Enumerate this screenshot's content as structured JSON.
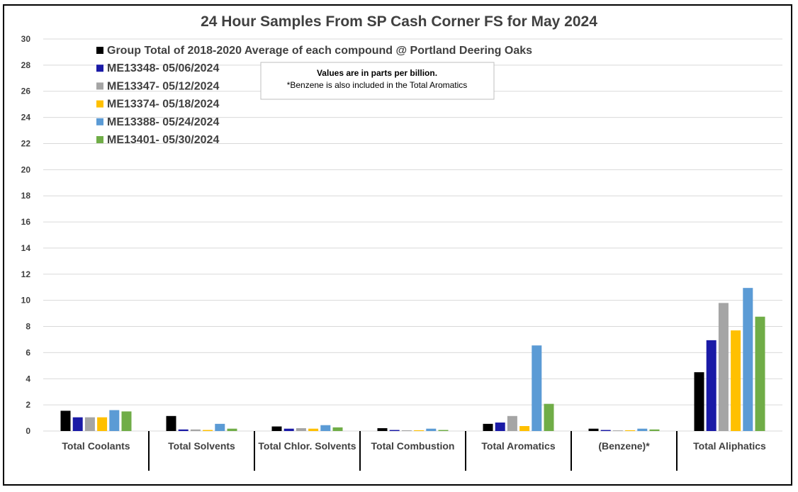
{
  "chart_data": {
    "type": "bar",
    "title": "24 Hour Samples From SP Cash Corner FS for May 2024",
    "xlabel": "",
    "ylabel": "",
    "ylim": [
      0,
      30
    ],
    "yticks": [
      0,
      2,
      4,
      6,
      8,
      10,
      12,
      14,
      16,
      18,
      20,
      22,
      24,
      26,
      28,
      30
    ],
    "grid": true,
    "legend_placement": "top-left",
    "categories": [
      "Total Coolants",
      "Total Solvents",
      "Total Chlor. Solvents",
      "Total Combustion",
      "Total Aromatics",
      "(Benzene)*",
      "Total Aliphatics"
    ],
    "series": [
      {
        "name": "Group Total of 2018-2020 Average of each compound @ Portland Deering Oaks",
        "color": "#000000",
        "values": [
          1.55,
          1.15,
          0.35,
          0.22,
          0.55,
          0.18,
          4.5
        ]
      },
      {
        "name": "ME13348- 05/06/2024",
        "color": "#1a1aa6",
        "values": [
          1.05,
          0.12,
          0.18,
          0.08,
          0.65,
          0.08,
          6.95
        ]
      },
      {
        "name": "ME13347- 05/12/2024",
        "color": "#a5a5a5",
        "values": [
          1.05,
          0.12,
          0.22,
          0.06,
          1.15,
          0.05,
          9.8
        ]
      },
      {
        "name": "ME13374- 05/18/2024",
        "color": "#ffc000",
        "values": [
          1.05,
          0.08,
          0.18,
          0.06,
          0.38,
          0.06,
          7.7
        ]
      },
      {
        "name": "ME13388- 05/24/2024",
        "color": "#5b9bd5",
        "values": [
          1.6,
          0.55,
          0.45,
          0.18,
          6.55,
          0.18,
          10.95
        ]
      },
      {
        "name": "ME13401- 05/30/2024",
        "color": "#70ad47",
        "values": [
          1.5,
          0.18,
          0.28,
          0.08,
          2.08,
          0.12,
          8.75
        ]
      }
    ],
    "annotation": {
      "line1": "Values are in parts per billion.",
      "line2": "*Benzene is also included in the Total Aromatics"
    }
  }
}
